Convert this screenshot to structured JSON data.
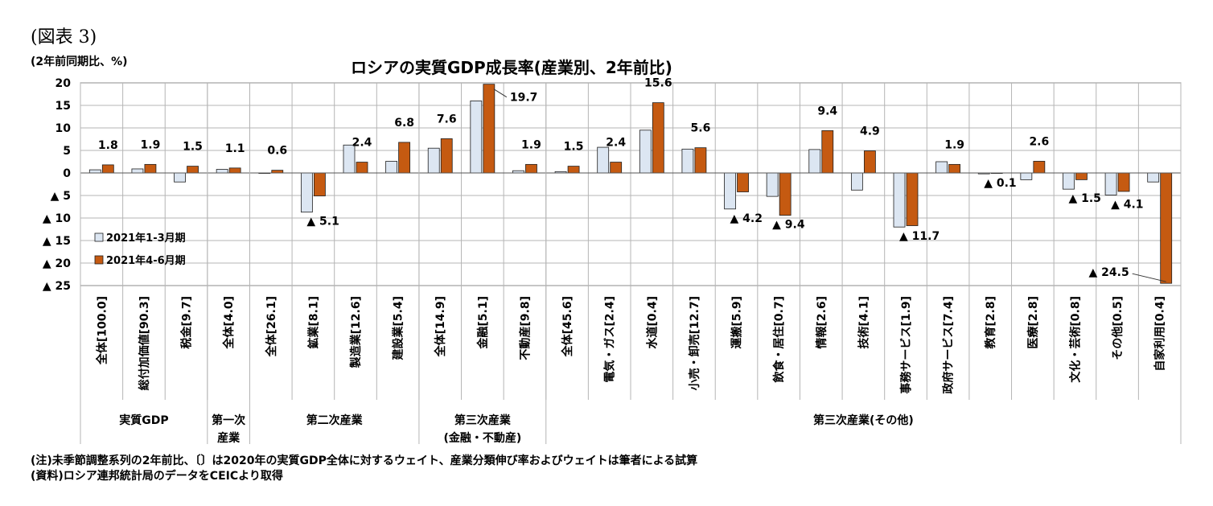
{
  "figure_label": "(図表 3)",
  "unit_label": "(2年前同期比、%)",
  "notes": {
    "note": "(注)未季節調整系列の2年前比、〔〕は2020年の実質GDP全体に対するウェイト、産業分類伸び率およびウェイトは筆者による試算",
    "source": "(資料)ロシア連邦統計局のデータをCEICより取得"
  },
  "chart_data": {
    "type": "bar",
    "title": "ロシアの実質GDP成長率(産業別、2年前比)",
    "ylim": [
      -25,
      20
    ],
    "yticks": [
      {
        "value": 20,
        "label": "20"
      },
      {
        "value": 15,
        "label": "15"
      },
      {
        "value": 10,
        "label": "10"
      },
      {
        "value": 5,
        "label": "5"
      },
      {
        "value": 0,
        "label": "0"
      },
      {
        "value": -5,
        "label": "▲ 5"
      },
      {
        "value": -10,
        "label": "▲ 10"
      },
      {
        "value": -15,
        "label": "▲ 15"
      },
      {
        "value": -20,
        "label": "▲ 20"
      },
      {
        "value": -25,
        "label": "▲ 25"
      }
    ],
    "grid": true,
    "legend_position": "left",
    "categories": [
      "全体[100.0]",
      "総付加価値[90.3]",
      "税金[9.7]",
      "全体[4.0]",
      "全体[26.1]",
      "鉱業[8.1]",
      "製造業[12.6]",
      "建設業[5.4]",
      "全体[14.9]",
      "金融[5.1]",
      "不動産[9.8]",
      "全体[45.6]",
      "電気・ガス[2.4]",
      "水道[0.4]",
      "小売・卸売[12.7]",
      "運搬[5.9]",
      "飲食・居住[0.7]",
      "情報[2.6]",
      "技術[4.1]",
      "事務サービス[1.9]",
      "政府サービス[7.4]",
      "教育[2.8]",
      "医療[2.8]",
      "文化・芸術[0.8]",
      "その他[0.5]",
      "自家利用[0.4]"
    ],
    "groups": [
      {
        "lines": [
          "実質GDP"
        ],
        "span": 3
      },
      {
        "lines": [
          "第一次",
          "産業"
        ],
        "span": 1
      },
      {
        "lines": [
          "第二次産業"
        ],
        "span": 4
      },
      {
        "lines": [
          "第三次産業",
          "(金融・不動産)"
        ],
        "span": 3
      },
      {
        "lines": [
          "第三次産業(その他)"
        ],
        "span": 15
      }
    ],
    "series": [
      {
        "name": "2021年1-3月期",
        "color": "#dce6f2",
        "stroke": "#1f1f1f",
        "values": [
          0.7,
          0.9,
          -2.0,
          0.8,
          0.0,
          -8.7,
          6.2,
          2.6,
          5.5,
          16.0,
          0.5,
          0.3,
          5.7,
          9.5,
          5.3,
          -8.0,
          -5.2,
          5.2,
          -3.8,
          -12.0,
          2.5,
          -0.2,
          -1.5,
          -3.6,
          -4.9,
          -2.0
        ]
      },
      {
        "name": "2021年4-6月期",
        "color": "#c55a11",
        "stroke": "#1f1f1f",
        "values": [
          1.8,
          1.9,
          1.5,
          1.1,
          0.6,
          -5.1,
          2.4,
          6.8,
          7.6,
          19.7,
          1.9,
          1.5,
          2.4,
          15.6,
          5.6,
          -4.2,
          -9.4,
          9.4,
          4.9,
          -11.7,
          1.9,
          -0.1,
          2.6,
          -1.5,
          -4.1,
          -24.5
        ]
      }
    ],
    "data_labels": [
      "1.8",
      "1.9",
      "1.5",
      "1.1",
      "0.6",
      "▲ 5.1",
      "2.4",
      "6.8",
      "7.6",
      "19.7",
      "1.9",
      "1.5",
      "2.4",
      "15.6",
      "5.6",
      "▲ 4.2",
      "▲ 9.4",
      "9.4",
      "4.9",
      "▲ 11.7",
      "1.9",
      "▲ 0.1",
      "2.6",
      "▲ 1.5",
      "▲ 4.1",
      "▲ 24.5"
    ]
  }
}
